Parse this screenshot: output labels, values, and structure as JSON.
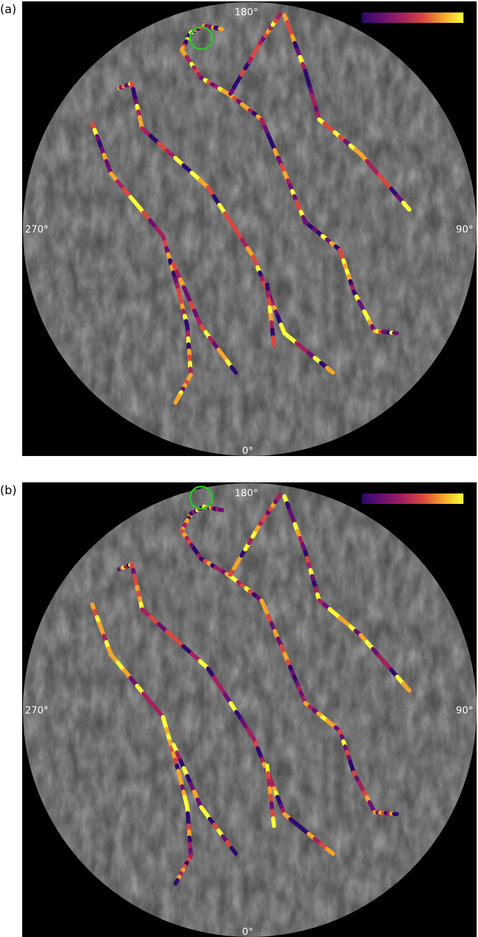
{
  "panels": [
    {
      "label": "(a)",
      "axis_labels": {
        "top": "180°",
        "left": "270°",
        "right": "90°",
        "bottom": "0°"
      }
    },
    {
      "label": "(b)",
      "axis_labels": {
        "top": "180°",
        "left": "270°",
        "right": "90°",
        "bottom": "0°"
      }
    }
  ],
  "colorbar": {
    "colormap": "plasma/inferno",
    "colors": [
      "#2d0a6e",
      "#6a1171",
      "#a4205f",
      "#d9483f",
      "#f5a52a",
      "#fcff3a"
    ]
  },
  "highlight_color": "#22cc22",
  "background": "#000000"
}
